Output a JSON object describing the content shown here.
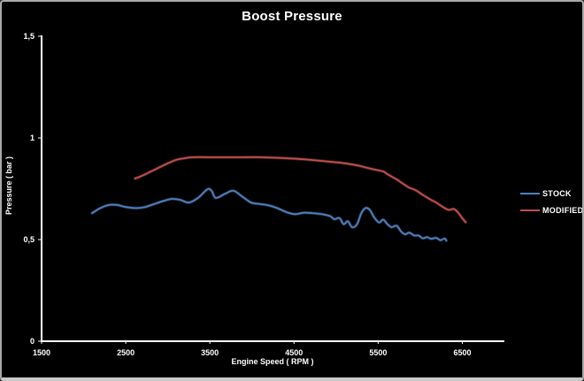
{
  "chart_data": {
    "type": "line",
    "title": "Boost Pressure",
    "xlabel": "Engine Speed ( RPM )",
    "ylabel": "Pressure ( bar )",
    "xlim": [
      1500,
      7000
    ],
    "ylim": [
      0,
      1.5
    ],
    "x_ticks": [
      1500,
      2500,
      3500,
      4500,
      5500,
      6500
    ],
    "x_tick_labels": [
      "1500",
      "2500",
      "3500",
      "4500",
      "5500",
      "6500"
    ],
    "y_ticks": [
      0,
      0.5,
      1,
      1.5
    ],
    "y_tick_labels": [
      "0",
      "0,5",
      "1",
      "1,5"
    ],
    "grid": false,
    "background": "#000000",
    "text_color": "#ffffff",
    "axis_color": "#ffffff",
    "legend_position": "right",
    "series": [
      {
        "name": "STOCK",
        "color": "#4f81bd",
        "points": [
          [
            2100,
            0.63
          ],
          [
            2200,
            0.655
          ],
          [
            2300,
            0.67
          ],
          [
            2400,
            0.67
          ],
          [
            2500,
            0.66
          ],
          [
            2630,
            0.655
          ],
          [
            2730,
            0.66
          ],
          [
            2840,
            0.675
          ],
          [
            2950,
            0.69
          ],
          [
            3050,
            0.7
          ],
          [
            3150,
            0.695
          ],
          [
            3250,
            0.682
          ],
          [
            3360,
            0.705
          ],
          [
            3470,
            0.747
          ],
          [
            3520,
            0.74
          ],
          [
            3570,
            0.705
          ],
          [
            3680,
            0.725
          ],
          [
            3780,
            0.74
          ],
          [
            3890,
            0.71
          ],
          [
            3990,
            0.682
          ],
          [
            4090,
            0.675
          ],
          [
            4200,
            0.668
          ],
          [
            4300,
            0.655
          ],
          [
            4410,
            0.635
          ],
          [
            4510,
            0.625
          ],
          [
            4620,
            0.632
          ],
          [
            4720,
            0.63
          ],
          [
            4830,
            0.625
          ],
          [
            4930,
            0.615
          ],
          [
            4980,
            0.6
          ],
          [
            5040,
            0.606
          ],
          [
            5090,
            0.576
          ],
          [
            5140,
            0.59
          ],
          [
            5190,
            0.561
          ],
          [
            5250,
            0.576
          ],
          [
            5300,
            0.63
          ],
          [
            5350,
            0.655
          ],
          [
            5400,
            0.646
          ],
          [
            5450,
            0.611
          ],
          [
            5510,
            0.584
          ],
          [
            5560,
            0.598
          ],
          [
            5610,
            0.576
          ],
          [
            5660,
            0.561
          ],
          [
            5720,
            0.568
          ],
          [
            5770,
            0.541
          ],
          [
            5820,
            0.526
          ],
          [
            5870,
            0.534
          ],
          [
            5930,
            0.52
          ],
          [
            5980,
            0.52
          ],
          [
            6030,
            0.506
          ],
          [
            6080,
            0.512
          ],
          [
            6130,
            0.504
          ],
          [
            6190,
            0.508
          ],
          [
            6240,
            0.497
          ],
          [
            6290,
            0.505
          ],
          [
            6310,
            0.495
          ]
        ]
      },
      {
        "name": "MODIFIED",
        "color": "#c0504d",
        "points": [
          [
            2610,
            0.8
          ],
          [
            2700,
            0.815
          ],
          [
            2800,
            0.835
          ],
          [
            2900,
            0.855
          ],
          [
            3000,
            0.875
          ],
          [
            3100,
            0.892
          ],
          [
            3200,
            0.9
          ],
          [
            3300,
            0.905
          ],
          [
            3500,
            0.905
          ],
          [
            3700,
            0.905
          ],
          [
            3900,
            0.905
          ],
          [
            4100,
            0.905
          ],
          [
            4300,
            0.902
          ],
          [
            4500,
            0.898
          ],
          [
            4700,
            0.892
          ],
          [
            4900,
            0.884
          ],
          [
            5050,
            0.878
          ],
          [
            5150,
            0.872
          ],
          [
            5250,
            0.865
          ],
          [
            5350,
            0.855
          ],
          [
            5450,
            0.845
          ],
          [
            5560,
            0.835
          ],
          [
            5610,
            0.822
          ],
          [
            5660,
            0.81
          ],
          [
            5720,
            0.796
          ],
          [
            5770,
            0.782
          ],
          [
            5820,
            0.768
          ],
          [
            5870,
            0.755
          ],
          [
            5930,
            0.746
          ],
          [
            5980,
            0.734
          ],
          [
            6030,
            0.72
          ],
          [
            6080,
            0.707
          ],
          [
            6130,
            0.695
          ],
          [
            6190,
            0.682
          ],
          [
            6240,
            0.668
          ],
          [
            6290,
            0.655
          ],
          [
            6340,
            0.646
          ],
          [
            6400,
            0.65
          ],
          [
            6450,
            0.633
          ],
          [
            6500,
            0.605
          ],
          [
            6540,
            0.585
          ]
        ]
      }
    ]
  }
}
